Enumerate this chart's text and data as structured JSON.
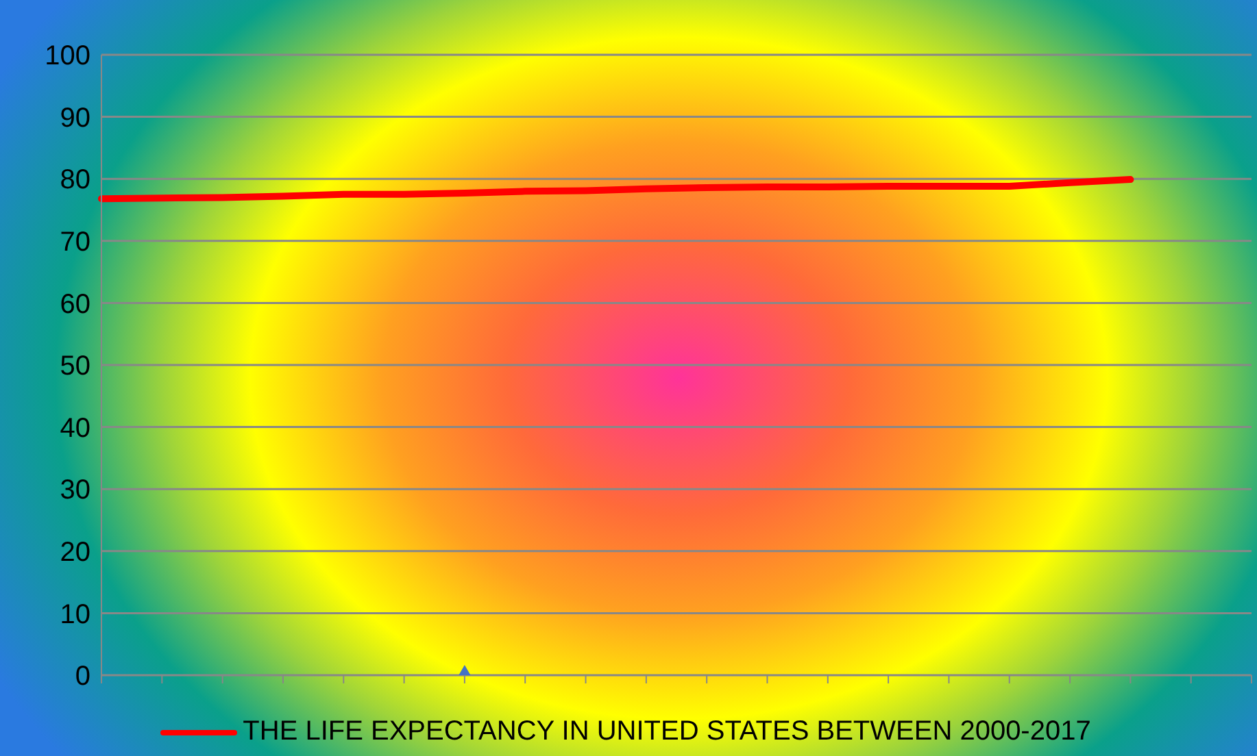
{
  "chart_data": {
    "type": "line",
    "categories": [
      null,
      null,
      null,
      null,
      null,
      null,
      null,
      null,
      null,
      null,
      null,
      null,
      null,
      null,
      null,
      null,
      null,
      null,
      null,
      null
    ],
    "series": [
      {
        "name": "THE LIFE EXPECTANCY IN UNITED STATES BETWEEN 2000-2017",
        "color": "#ff0000",
        "values": [
          76.8,
          76.9,
          77.0,
          77.2,
          77.5,
          77.5,
          77.7,
          78.0,
          78.1,
          78.4,
          78.6,
          78.7,
          78.7,
          78.8,
          78.8,
          78.8,
          79.4,
          79.9,
          null,
          null
        ]
      },
      {
        "type": "scatter",
        "color": "#4472c4",
        "marker": "diamond",
        "values": [
          null,
          null,
          null,
          null,
          null,
          null,
          0,
          null,
          null,
          null,
          null,
          null,
          null,
          null,
          null,
          null,
          null,
          null,
          null,
          null
        ]
      }
    ],
    "ylim": [
      0,
      100
    ],
    "yticks": [
      0,
      10,
      20,
      30,
      40,
      50,
      60,
      70,
      80,
      90,
      100
    ],
    "grid": "y",
    "legend": "bottom",
    "marker": "none",
    "line_style": "solid"
  }
}
